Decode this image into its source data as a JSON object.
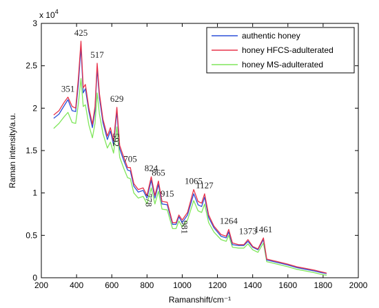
{
  "chart_data": {
    "type": "line",
    "xlabel": "Ramanshift/cm⁻¹",
    "ylabel": "Raman intensity/a.u.",
    "xlim": [
      200,
      2000
    ],
    "ylim": [
      0,
      30000
    ],
    "x_ticks": [
      200,
      400,
      600,
      800,
      1000,
      1200,
      1400,
      1600,
      1800,
      2000
    ],
    "y_ticks": [
      0,
      5000,
      10000,
      15000,
      20000,
      25000,
      30000
    ],
    "y_tick_labels": [
      "0",
      "0.5",
      "1",
      "1.5",
      "2",
      "2.5",
      "3"
    ],
    "y_multiplier": "x 10",
    "y_multiplier_exp": "4",
    "legend_position": "top-right",
    "series": [
      {
        "name": "authentic honey",
        "color": "#2b4fd8",
        "points": [
          [
            270,
            18800
          ],
          [
            300,
            19300
          ],
          [
            330,
            20300
          ],
          [
            351,
            21000
          ],
          [
            375,
            19700
          ],
          [
            395,
            19600
          ],
          [
            410,
            22800
          ],
          [
            425,
            27200
          ],
          [
            438,
            21800
          ],
          [
            450,
            22300
          ],
          [
            470,
            19600
          ],
          [
            490,
            17700
          ],
          [
            505,
            19700
          ],
          [
            517,
            24700
          ],
          [
            530,
            21200
          ],
          [
            550,
            18300
          ],
          [
            575,
            16300
          ],
          [
            592,
            17300
          ],
          [
            610,
            15700
          ],
          [
            629,
            19600
          ],
          [
            645,
            15200
          ],
          [
            670,
            13700
          ],
          [
            690,
            12700
          ],
          [
            705,
            12600
          ],
          [
            725,
            10800
          ],
          [
            750,
            10100
          ],
          [
            778,
            10300
          ],
          [
            800,
            9400
          ],
          [
            824,
            11500
          ],
          [
            845,
            9400
          ],
          [
            865,
            11000
          ],
          [
            885,
            8700
          ],
          [
            915,
            8600
          ],
          [
            945,
            6300
          ],
          [
            965,
            6300
          ],
          [
            981,
            7200
          ],
          [
            1000,
            6500
          ],
          [
            1030,
            7400
          ],
          [
            1065,
            9900
          ],
          [
            1090,
            8600
          ],
          [
            1110,
            8400
          ],
          [
            1127,
            9500
          ],
          [
            1150,
            7100
          ],
          [
            1180,
            5900
          ],
          [
            1220,
            4900
          ],
          [
            1250,
            4700
          ],
          [
            1264,
            5400
          ],
          [
            1285,
            3900
          ],
          [
            1320,
            3800
          ],
          [
            1350,
            3800
          ],
          [
            1373,
            4300
          ],
          [
            1400,
            3600
          ],
          [
            1430,
            3300
          ],
          [
            1461,
            4500
          ],
          [
            1480,
            2100
          ],
          [
            1520,
            1900
          ],
          [
            1560,
            1700
          ],
          [
            1600,
            1500
          ],
          [
            1650,
            1200
          ],
          [
            1700,
            1000
          ],
          [
            1750,
            800
          ],
          [
            1790,
            600
          ],
          [
            1820,
            500
          ]
        ]
      },
      {
        "name": "honey HFCS-adulterated",
        "color": "#e8324a",
        "points": [
          [
            270,
            19200
          ],
          [
            300,
            19700
          ],
          [
            330,
            20700
          ],
          [
            351,
            21300
          ],
          [
            375,
            20200
          ],
          [
            395,
            20000
          ],
          [
            410,
            23500
          ],
          [
            425,
            27900
          ],
          [
            438,
            22400
          ],
          [
            450,
            22800
          ],
          [
            470,
            20000
          ],
          [
            490,
            18100
          ],
          [
            505,
            20200
          ],
          [
            517,
            25300
          ],
          [
            530,
            21700
          ],
          [
            550,
            18700
          ],
          [
            575,
            16700
          ],
          [
            592,
            17700
          ],
          [
            610,
            16100
          ],
          [
            629,
            20100
          ],
          [
            645,
            15600
          ],
          [
            670,
            14100
          ],
          [
            690,
            13000
          ],
          [
            705,
            13000
          ],
          [
            725,
            11100
          ],
          [
            750,
            10400
          ],
          [
            778,
            10600
          ],
          [
            800,
            9700
          ],
          [
            824,
            11900
          ],
          [
            845,
            9700
          ],
          [
            865,
            11400
          ],
          [
            885,
            9000
          ],
          [
            915,
            8900
          ],
          [
            945,
            6500
          ],
          [
            965,
            6500
          ],
          [
            981,
            7400
          ],
          [
            1000,
            6800
          ],
          [
            1030,
            7700
          ],
          [
            1065,
            10400
          ],
          [
            1090,
            9000
          ],
          [
            1110,
            8800
          ],
          [
            1127,
            9900
          ],
          [
            1150,
            7400
          ],
          [
            1180,
            6100
          ],
          [
            1220,
            5100
          ],
          [
            1250,
            4900
          ],
          [
            1264,
            5700
          ],
          [
            1285,
            4100
          ],
          [
            1320,
            3900
          ],
          [
            1350,
            3900
          ],
          [
            1373,
            4500
          ],
          [
            1400,
            3700
          ],
          [
            1430,
            3400
          ],
          [
            1461,
            4700
          ],
          [
            1480,
            2200
          ],
          [
            1520,
            2000
          ],
          [
            1560,
            1800
          ],
          [
            1600,
            1600
          ],
          [
            1650,
            1300
          ],
          [
            1700,
            1100
          ],
          [
            1750,
            900
          ],
          [
            1790,
            700
          ],
          [
            1820,
            550
          ]
        ]
      },
      {
        "name": "honey MS-adulterated",
        "color": "#7fe65a",
        "points": [
          [
            270,
            17600
          ],
          [
            300,
            18200
          ],
          [
            330,
            19000
          ],
          [
            351,
            19500
          ],
          [
            375,
            18300
          ],
          [
            395,
            18200
          ],
          [
            410,
            20500
          ],
          [
            425,
            23500
          ],
          [
            438,
            20200
          ],
          [
            450,
            20400
          ],
          [
            470,
            18000
          ],
          [
            490,
            16500
          ],
          [
            505,
            18200
          ],
          [
            517,
            21800
          ],
          [
            530,
            19300
          ],
          [
            550,
            17000
          ],
          [
            575,
            15300
          ],
          [
            592,
            16000
          ],
          [
            610,
            14700
          ],
          [
            629,
            17800
          ],
          [
            645,
            14200
          ],
          [
            670,
            12800
          ],
          [
            690,
            11800
          ],
          [
            705,
            11700
          ],
          [
            725,
            10000
          ],
          [
            750,
            9400
          ],
          [
            778,
            9600
          ],
          [
            800,
            8700
          ],
          [
            824,
            10600
          ],
          [
            845,
            8700
          ],
          [
            865,
            10200
          ],
          [
            885,
            8100
          ],
          [
            915,
            8000
          ],
          [
            945,
            5800
          ],
          [
            965,
            5800
          ],
          [
            981,
            6700
          ],
          [
            1000,
            6000
          ],
          [
            1030,
            6800
          ],
          [
            1065,
            9100
          ],
          [
            1090,
            7900
          ],
          [
            1110,
            7700
          ],
          [
            1127,
            8700
          ],
          [
            1150,
            6500
          ],
          [
            1180,
            5400
          ],
          [
            1220,
            4500
          ],
          [
            1250,
            4300
          ],
          [
            1264,
            5000
          ],
          [
            1285,
            3600
          ],
          [
            1320,
            3500
          ],
          [
            1350,
            3500
          ],
          [
            1373,
            4000
          ],
          [
            1400,
            3300
          ],
          [
            1430,
            3000
          ],
          [
            1461,
            4100
          ],
          [
            1480,
            1900
          ],
          [
            1520,
            1700
          ],
          [
            1560,
            1500
          ],
          [
            1600,
            1300
          ],
          [
            1650,
            1000
          ],
          [
            1700,
            800
          ],
          [
            1750,
            600
          ],
          [
            1790,
            400
          ],
          [
            1820,
            300
          ]
        ]
      }
    ],
    "peak_labels": [
      {
        "text": "351",
        "x": 351,
        "y": 21300,
        "vertical": false
      },
      {
        "text": "425",
        "x": 425,
        "y": 27900,
        "vertical": false
      },
      {
        "text": "517",
        "x": 517,
        "y": 25300,
        "vertical": false
      },
      {
        "text": "592",
        "x": 592,
        "y": 17700,
        "vertical": true
      },
      {
        "text": "629",
        "x": 629,
        "y": 20100,
        "vertical": false
      },
      {
        "text": "705",
        "x": 705,
        "y": 13000,
        "vertical": false
      },
      {
        "text": "778",
        "x": 778,
        "y": 10600,
        "vertical": true
      },
      {
        "text": "824",
        "x": 824,
        "y": 11900,
        "vertical": false
      },
      {
        "text": "865",
        "x": 865,
        "y": 11400,
        "vertical": false
      },
      {
        "text": "915",
        "x": 915,
        "y": 8900,
        "vertical": false
      },
      {
        "text": "981",
        "x": 981,
        "y": 7400,
        "vertical": true
      },
      {
        "text": "1065",
        "x": 1065,
        "y": 10400,
        "vertical": false
      },
      {
        "text": "1127",
        "x": 1127,
        "y": 9900,
        "vertical": false
      },
      {
        "text": "1264",
        "x": 1264,
        "y": 5700,
        "vertical": false
      },
      {
        "text": "1373",
        "x": 1373,
        "y": 4500,
        "vertical": false
      },
      {
        "text": "1461",
        "x": 1461,
        "y": 4700,
        "vertical": false
      }
    ]
  }
}
